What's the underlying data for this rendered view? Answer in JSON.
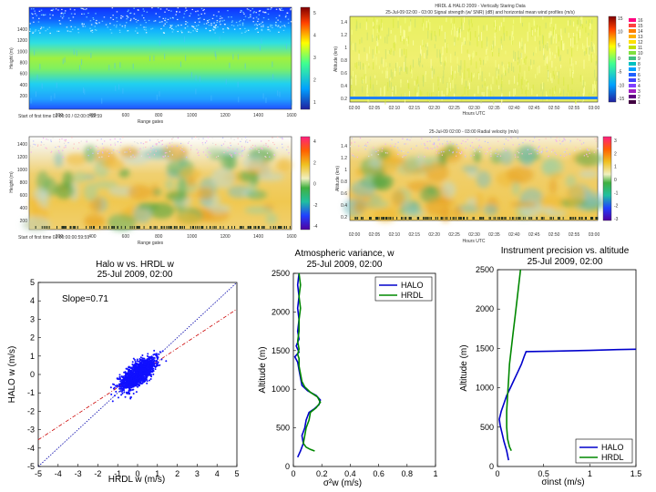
{
  "chart_data": [
    {
      "type": "heatmap",
      "id": "p1",
      "title": "",
      "xlabel": "Range gates",
      "ylabel": "Height (m)",
      "start_label": "Start of first time 02:00:00 / 02:00:0:32:59",
      "xticks": [
        "200",
        "400",
        "600",
        "800",
        "1000",
        "1200",
        "1400",
        "1600"
      ],
      "yticks": [
        "200",
        "400",
        "600",
        "800",
        "1000",
        "1200",
        "1400"
      ],
      "colorbar_ticks": [
        "1",
        "2",
        "3",
        "4",
        "5"
      ],
      "colorbar_colors": [
        "#1a3cff",
        "#00c8ff",
        "#40ff80",
        "#ffff00",
        "#ff3000",
        "#800000"
      ]
    },
    {
      "type": "heatmap",
      "id": "p2",
      "title": "HRDL & HALO 2009 - Vertically Staring Data",
      "subtitle": "25-Jul-09 02:00 - 03:00 Signal strength (w/ SNR) (dB) and horizontal mean wind profiles (m/s)",
      "xlabel": "Hours UTC",
      "ylabel": "Altitude (km)",
      "xticks": [
        "02:00",
        "02:05",
        "02:10",
        "02:15",
        "02:20",
        "02:25",
        "02:30",
        "02:35",
        "02:40",
        "02:45",
        "02:50",
        "02:55",
        "03:00"
      ],
      "yticks": [
        "0.2",
        "0.4",
        "0.6",
        "0.8",
        "1",
        "1.2",
        "1.4"
      ],
      "colorbar_ticks": [
        "15",
        "10",
        "5",
        "0",
        "-5",
        "-10",
        "-15"
      ],
      "legend_items": [
        "16",
        "15",
        "14",
        "13",
        "12",
        "11",
        "10",
        "9",
        "8",
        "7",
        "6",
        "5",
        "4",
        "3",
        "2",
        "1"
      ]
    },
    {
      "type": "heatmap",
      "id": "p3",
      "title": "",
      "xlabel": "Range gates",
      "ylabel": "Height (m)",
      "start_label": "Start of first time 02:00:00:00:59:59",
      "xticks": [
        "200",
        "400",
        "600",
        "800",
        "1000",
        "1200",
        "1400",
        "1600"
      ],
      "yticks": [
        "200",
        "400",
        "600",
        "800",
        "1000",
        "1200",
        "1400"
      ],
      "colorbar_ticks": [
        "4",
        "2",
        "0",
        "-2",
        "-4"
      ]
    },
    {
      "type": "heatmap",
      "id": "p4",
      "title": "25-Jul-09 02:00 - 03:00 Radial velocity (m/s)",
      "xlabel": "Hours UTC",
      "ylabel": "Altitude (km)",
      "xticks": [
        "02:00",
        "02:05",
        "02:10",
        "02:15",
        "02:20",
        "02:25",
        "02:30",
        "02:35",
        "02:40",
        "02:45",
        "02:50",
        "02:55",
        "03:00"
      ],
      "yticks": [
        "0.2",
        "0.4",
        "0.6",
        "0.8",
        "1",
        "1.2",
        "1.4"
      ],
      "colorbar_ticks": [
        "3",
        "2",
        "1",
        "0",
        "-1",
        "-2",
        "-3"
      ]
    },
    {
      "type": "scatter",
      "id": "p5",
      "title": "Halo w vs. HRDL w",
      "subtitle": "25-Jul 2009, 02:00",
      "xlabel": "HRDL w (m/s)",
      "ylabel": "HALO w (m/s)",
      "xlim": [
        -5,
        5
      ],
      "ylim": [
        -5,
        5
      ],
      "xticks": [
        -5,
        -4,
        -3,
        -2,
        -1,
        0,
        1,
        2,
        3,
        4,
        5
      ],
      "yticks": [
        -5,
        -4,
        -3,
        -2,
        -1,
        0,
        1,
        2,
        3,
        4,
        5
      ],
      "annotation": "Slope=0.71",
      "slope": 0.71,
      "lines": [
        {
          "name": "1:1 line",
          "slope": 1.0,
          "color": "#0000aa",
          "style": "dotted"
        },
        {
          "name": "fit",
          "slope": 0.71,
          "color": "#cc0000",
          "style": "dashdot"
        }
      ],
      "point_color": "#1010ff"
    },
    {
      "type": "line",
      "id": "p6",
      "title": "Atmospheric variance, w",
      "subtitle": "25-Jul 2009, 02:00",
      "xlabel": "σ²w (m/s)",
      "ylabel": "Altitude (m)",
      "xlim": [
        0,
        1
      ],
      "ylim": [
        0,
        2500
      ],
      "xticks": [
        "0",
        "0.2",
        "0.4",
        "0.6",
        "0.8",
        "1"
      ],
      "yticks": [
        "0",
        "500",
        "1000",
        "1500",
        "2000",
        "2500"
      ],
      "legend": [
        "HALO",
        "HRDL"
      ],
      "series": [
        {
          "name": "HALO",
          "color": "#0000cc",
          "points": [
            [
              0.03,
              120
            ],
            [
              0.05,
              200
            ],
            [
              0.07,
              300
            ],
            [
              0.06,
              400
            ],
            [
              0.08,
              500
            ],
            [
              0.09,
              600
            ],
            [
              0.11,
              700
            ],
            [
              0.15,
              750
            ],
            [
              0.18,
              800
            ],
            [
              0.19,
              860
            ],
            [
              0.16,
              920
            ],
            [
              0.1,
              980
            ],
            [
              0.06,
              1050
            ],
            [
              0.05,
              1150
            ],
            [
              0.04,
              1250
            ],
            [
              0.03,
              1350
            ],
            [
              0.01,
              1420
            ],
            [
              0.04,
              1480
            ],
            [
              0.02,
              1560
            ],
            [
              0.04,
              1650
            ],
            [
              0.03,
              1750
            ],
            [
              0.04,
              1900
            ],
            [
              0.03,
              2050
            ],
            [
              0.04,
              2200
            ],
            [
              0.03,
              2350
            ],
            [
              0.04,
              2500
            ]
          ]
        },
        {
          "name": "HRDL",
          "color": "#008800",
          "points": [
            [
              0.15,
              200
            ],
            [
              0.12,
              220
            ],
            [
              0.09,
              250
            ],
            [
              0.07,
              300
            ],
            [
              0.08,
              400
            ],
            [
              0.09,
              500
            ],
            [
              0.11,
              600
            ],
            [
              0.12,
              700
            ],
            [
              0.16,
              760
            ],
            [
              0.19,
              830
            ],
            [
              0.17,
              900
            ],
            [
              0.12,
              960
            ],
            [
              0.08,
              1030
            ],
            [
              0.06,
              1100
            ],
            [
              0.05,
              1200
            ],
            [
              0.04,
              1300
            ],
            [
              0.04,
              1400
            ],
            [
              0.03,
              1450
            ],
            [
              0.04,
              1520
            ],
            [
              0.03,
              1620
            ],
            [
              0.04,
              1750
            ],
            [
              0.04,
              1900
            ],
            [
              0.05,
              2050
            ],
            [
              0.04,
              2200
            ],
            [
              0.05,
              2350
            ],
            [
              0.04,
              2500
            ]
          ]
        }
      ]
    },
    {
      "type": "line",
      "id": "p7",
      "title": "Instrument precision vs. altitude",
      "subtitle": "25-Jul 2009, 02:00",
      "xlabel": "σinst (m/s)",
      "ylabel": "Altitude (m)",
      "xlim": [
        0,
        1.5
      ],
      "ylim": [
        0,
        2500
      ],
      "xticks": [
        "0",
        "0.5",
        "1",
        "1.5"
      ],
      "yticks": [
        "0",
        "500",
        "1000",
        "1500",
        "2000",
        "2500"
      ],
      "legend": [
        "HALO",
        "HRDL"
      ],
      "series": [
        {
          "name": "HALO",
          "color": "#0000cc",
          "points": [
            [
              0.12,
              80
            ],
            [
              0.1,
              200
            ],
            [
              0.07,
              320
            ],
            [
              0.05,
              420
            ],
            [
              0.03,
              520
            ],
            [
              0.02,
              600
            ],
            [
              0.04,
              700
            ],
            [
              0.07,
              800
            ],
            [
              0.1,
              900
            ],
            [
              0.14,
              1000
            ],
            [
              0.18,
              1100
            ],
            [
              0.22,
              1200
            ],
            [
              0.26,
              1300
            ],
            [
              0.29,
              1400
            ],
            [
              0.31,
              1460
            ],
            [
              0.6,
              1465
            ],
            [
              1.0,
              1475
            ],
            [
              1.3,
              1485
            ],
            [
              1.5,
              1490
            ]
          ]
        },
        {
          "name": "HRDL",
          "color": "#008800",
          "points": [
            [
              0.15,
              200
            ],
            [
              0.13,
              250
            ],
            [
              0.11,
              350
            ],
            [
              0.1,
              500
            ],
            [
              0.1,
              700
            ],
            [
              0.11,
              900
            ],
            [
              0.12,
              1100
            ],
            [
              0.13,
              1300
            ],
            [
              0.15,
              1500
            ],
            [
              0.17,
              1700
            ],
            [
              0.19,
              1900
            ],
            [
              0.21,
              2100
            ],
            [
              0.23,
              2300
            ],
            [
              0.25,
              2500
            ]
          ]
        }
      ]
    }
  ]
}
